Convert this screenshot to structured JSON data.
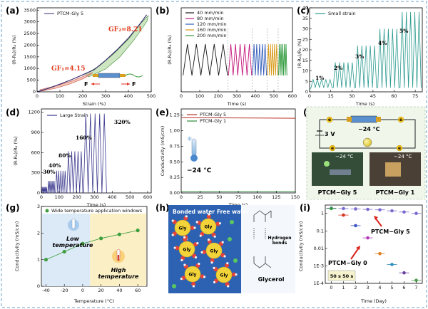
{
  "panels": {
    "a": {
      "label": "(a)",
      "legend": "PTCM-Gly 5",
      "gf1": "GF₁=4.15",
      "gf2": "GF₂=8.21",
      "force": "F",
      "xlabel": "Strain (%)",
      "ylabel": "(R-R₀)/R₀ (%)",
      "xticks": [
        "0",
        "100",
        "200",
        "300",
        "400",
        "500"
      ],
      "yticks": [
        "0",
        "500",
        "1000",
        "1500",
        "2000",
        "2500",
        "3000",
        "3500"
      ]
    },
    "b": {
      "label": "(b)",
      "legend": [
        "40 mm/min",
        "80 mm/min",
        "120 mm/min",
        "160 mm/min",
        "200 mm/min"
      ],
      "xlabel": "Time (s)",
      "ylabel": "(R-R₀)/R₀ (%)",
      "xticks": [
        "0",
        "100",
        "200",
        "300",
        "400",
        "500",
        "600"
      ]
    },
    "c": {
      "label": "(c)",
      "legend": "Small strain",
      "xlabel": "Time (s)",
      "ylabel": "(R-R₀)/R₀ (%)",
      "xticks": [
        "0",
        "15",
        "30",
        "45",
        "60",
        "75"
      ],
      "yticks": [
        "0",
        "5",
        "10",
        "15",
        "20",
        "25",
        "30",
        "35",
        "40"
      ],
      "annotations": [
        "1%",
        "2%",
        "3%",
        "4%",
        "5%"
      ]
    },
    "d": {
      "label": "(d)",
      "legend": "Large Strain",
      "xlabel": "Time (s)",
      "ylabel": "(R-R₀)/R₀ (%)",
      "xticks": [
        "0",
        "100",
        "200",
        "300",
        "400",
        "500",
        "600"
      ],
      "yticks": [
        "0",
        "300",
        "600",
        "900",
        "1200"
      ],
      "annotations": [
        "30%",
        "40%",
        "80%",
        "160%",
        "320%"
      ]
    },
    "e": {
      "label": "(e)",
      "legend": [
        "PTCM-Gly 5",
        "PTCM-Gly 1"
      ],
      "temp": "−24 °C",
      "xlabel": "Time (s)",
      "ylabel": "Conductivity (mS/cm)",
      "xticks": [
        "0",
        "25",
        "50",
        "75",
        "100",
        "125",
        "150"
      ],
      "yticks": [
        "0.00",
        "0.25",
        "0.50",
        "0.75",
        "1.00",
        "1.25"
      ]
    },
    "f": {
      "label": "(f)",
      "voltage": "3 V",
      "temp": "−24 °C",
      "electron": "e",
      "photo_temps": [
        "−24 °C",
        "−24 °C"
      ],
      "captions": [
        "PTCM−Gly 5",
        "PTCM−Gly 1"
      ]
    },
    "g": {
      "label": "(g)",
      "legend": "Wide temperature application windows",
      "low": "Low\ntemperature",
      "high": "High\ntemperature",
      "xlabel": "Temperature (°C)",
      "ylabel": "Conductivity (mS/cm)",
      "xticks": [
        "-40",
        "-20",
        "0",
        "20",
        "40",
        "60"
      ],
      "yticks": [
        "0",
        "1",
        "2",
        "3"
      ]
    },
    "h": {
      "label": "(h)",
      "bonded": "Bonded water",
      "free": "Free water",
      "gly": "Gly",
      "hbond": "Hydrogen\nbonds",
      "glycerol": "Glycerol"
    },
    "i": {
      "label": "(i)",
      "ann1": "PTCM−Gly 5",
      "ann2": "PTCM−Gly 0",
      "box": "50 s 50 s",
      "xlabel": "Time (Day)",
      "ylabel": "Conductivity (mS/cm)",
      "xticks": [
        "0",
        "1",
        "2",
        "3",
        "4",
        "5",
        "6",
        "7"
      ],
      "yticks": [
        "1E-4",
        "1E-3",
        "0.01",
        "0.1",
        "1"
      ]
    }
  },
  "chart_data": [
    {
      "panel": "a",
      "type": "line",
      "series": [
        {
          "name": "PTCM-Gly 5",
          "x": [
            0,
            50,
            100,
            150,
            200,
            250,
            300,
            350,
            400,
            450,
            480
          ],
          "y": [
            0,
            150,
            330,
            520,
            730,
            950,
            1350,
            1800,
            2300,
            2900,
            3300
          ]
        }
      ],
      "xlim": [
        0,
        500
      ],
      "ylim": [
        0,
        3600
      ],
      "annotations": [
        "GF₁=4.15",
        "GF₂=8.21"
      ]
    },
    {
      "panel": "b",
      "type": "line",
      "series": [
        {
          "name": "40 mm/min",
          "cycles": 5
        },
        {
          "name": "80 mm/min",
          "cycles": 5
        },
        {
          "name": "120 mm/min",
          "cycles": 5
        },
        {
          "name": "160 mm/min",
          "cycles": 5
        },
        {
          "name": "200 mm/min",
          "cycles": 5
        }
      ],
      "xlim": [
        0,
        600
      ]
    },
    {
      "panel": "c",
      "type": "line",
      "series": [
        {
          "name": "Small strain",
          "peaks_by_step": [
            6,
            14,
            22,
            30,
            38
          ]
        }
      ],
      "xlim": [
        0,
        80
      ],
      "ylim": [
        0,
        40
      ]
    },
    {
      "panel": "d",
      "type": "line",
      "series": [
        {
          "name": "Large Strain",
          "peaks_by_step": [
            90,
            180,
            330,
            620,
            1180
          ]
        }
      ],
      "xlim": [
        0,
        620
      ],
      "ylim": [
        0,
        1250
      ]
    },
    {
      "panel": "e",
      "type": "line",
      "series": [
        {
          "name": "PTCM-Gly 5",
          "x": [
            0,
            150
          ],
          "y": [
            1.21,
            1.2
          ]
        },
        {
          "name": "PTCM-Gly 1",
          "x": [
            0,
            150
          ],
          "y": [
            0.02,
            0.02
          ]
        }
      ],
      "xlim": [
        0,
        150
      ],
      "ylim": [
        0,
        1.35
      ]
    },
    {
      "panel": "g",
      "type": "scatter",
      "series": [
        {
          "name": "Wide temperature application windows",
          "x": [
            -40,
            -20,
            0,
            20,
            40,
            60
          ],
          "y": [
            1.0,
            1.3,
            1.6,
            1.8,
            1.95,
            2.1
          ]
        }
      ],
      "xlim": [
        -45,
        70
      ],
      "ylim": [
        0,
        3
      ]
    },
    {
      "panel": "i",
      "type": "scatter",
      "series": [
        {
          "name": "PTCM−Gly 5",
          "x": [
            0,
            1,
            2,
            3,
            4,
            5,
            6,
            7
          ],
          "y": [
            2.0,
            1.9,
            1.8,
            1.7,
            1.6,
            1.4,
            1.2,
            1.0
          ]
        },
        {
          "name": "PTCM−Gly 0",
          "x": [
            0,
            1,
            2,
            3,
            4,
            5,
            6,
            7
          ],
          "y": [
            1.9,
            0.8,
            0.2,
            0.04,
            0.005,
            0.0012,
            0.0004,
            0.00015
          ]
        }
      ],
      "xlim": [
        -0.5,
        7.5
      ],
      "ylim": [
        0.0001,
        3
      ],
      "yscale": "log"
    }
  ]
}
